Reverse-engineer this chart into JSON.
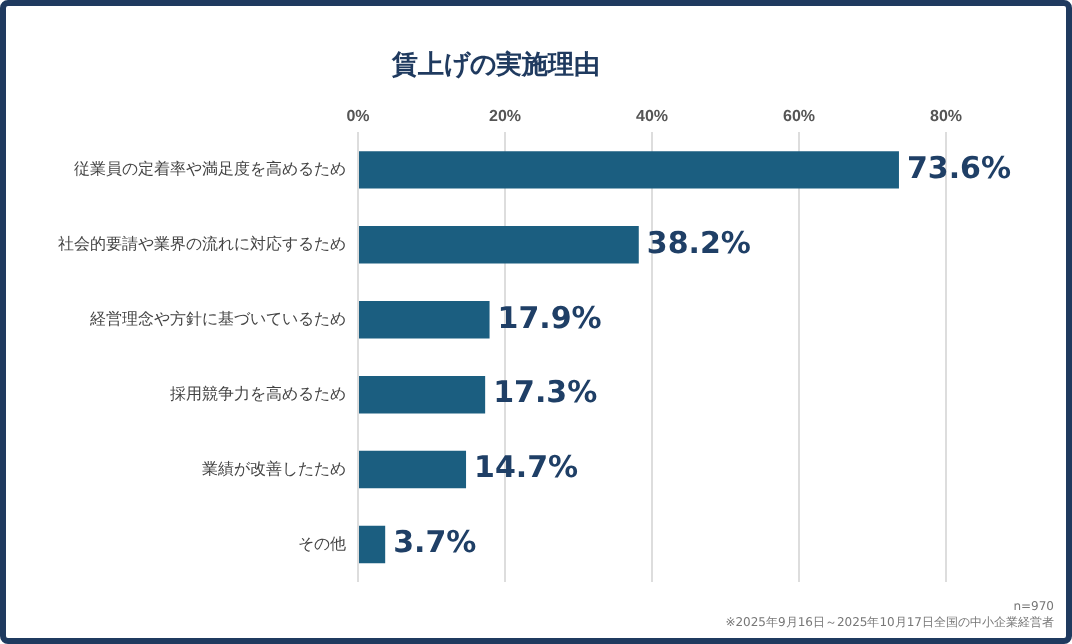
{
  "chart_data": {
    "type": "bar",
    "orientation": "horizontal",
    "title": "賃上げの実施理由",
    "categories": [
      "従業員の定着率や満足度を高めるため",
      "社会的要請や業界の流れに対応するため",
      "経営理念や方針に基づいているため",
      "採用競争力を高めるため",
      "業績が改善したため",
      "その他"
    ],
    "values": [
      73.6,
      38.2,
      17.9,
      17.3,
      14.7,
      3.7
    ],
    "value_labels": [
      "73.6%",
      "38.2%",
      "17.9%",
      "17.3%",
      "14.7%",
      "3.7%"
    ],
    "color": "#1b5e80",
    "xlim": [
      0,
      80
    ],
    "xticks": [
      {
        "value": 0,
        "label": "0%"
      },
      {
        "value": 20,
        "label": "20%"
      },
      {
        "value": 40,
        "label": "40%"
      },
      {
        "value": 60,
        "label": "60%"
      },
      {
        "value": 80,
        "label": "80%"
      }
    ],
    "grid": "x",
    "annotations": [
      "n=970",
      "※2025年9月16日～2025年10月17日全国の中小企業経営者"
    ]
  }
}
